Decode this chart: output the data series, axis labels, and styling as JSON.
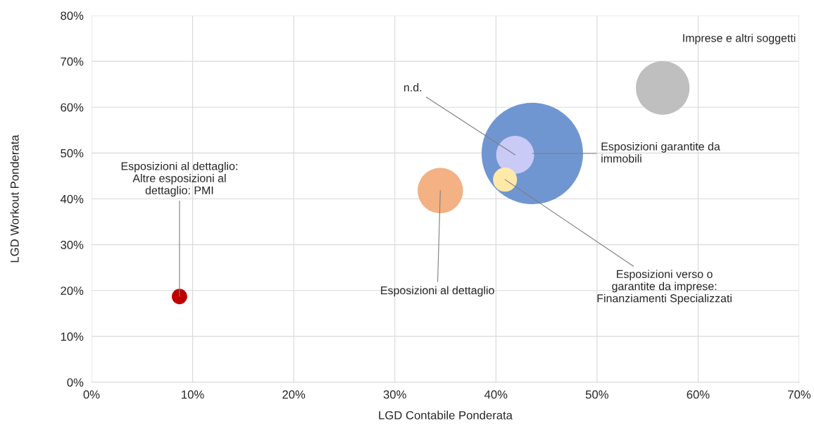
{
  "chart_data": {
    "type": "bubble",
    "xlabel": "LGD Contabile Ponderata",
    "ylabel": "LGD Workout Ponderata",
    "xlim": [
      0,
      70
    ],
    "ylim": [
      0,
      80
    ],
    "xticks": [
      {
        "value": 0,
        "label": "0%"
      },
      {
        "value": 10,
        "label": "10%"
      },
      {
        "value": 20,
        "label": "20%"
      },
      {
        "value": 30,
        "label": "30%"
      },
      {
        "value": 40,
        "label": "40%"
      },
      {
        "value": 50,
        "label": "50%"
      },
      {
        "value": 60,
        "label": "60%"
      },
      {
        "value": 70,
        "label": "70%"
      }
    ],
    "yticks": [
      {
        "value": 0,
        "label": "0%"
      },
      {
        "value": 10,
        "label": "10%"
      },
      {
        "value": 20,
        "label": "20%"
      },
      {
        "value": 30,
        "label": "30%"
      },
      {
        "value": 40,
        "label": "40%"
      },
      {
        "value": 50,
        "label": "50%"
      },
      {
        "value": 60,
        "label": "60%"
      },
      {
        "value": 70,
        "label": "70%"
      },
      {
        "value": 80,
        "label": "80%"
      }
    ],
    "grid": true,
    "legend": false,
    "series": [
      {
        "name": "Esposizioni garantite da\nimmobili",
        "color": "#7096d1",
        "x": [
          43.6
        ],
        "values": [
          49.9
        ],
        "sizes": [
          1
        ]
      },
      {
        "name": "n.d.",
        "color": "#cacaf6",
        "x": [
          41.9
        ],
        "values": [
          49.6
        ],
        "sizes": [
          0.14
        ]
      },
      {
        "name": "Esposizioni verso o\ngarantite da imprese:\nFinanziamenti Specializzati",
        "color": "#ffe9a8",
        "x": [
          40.9
        ],
        "values": [
          44.2
        ],
        "sizes": [
          0.056
        ]
      },
      {
        "name": "Esposizioni al dettaglio",
        "color": "#f4b183",
        "x": [
          34.5
        ],
        "values": [
          41.8
        ],
        "sizes": [
          0.2
        ]
      },
      {
        "name": "Esposizioni al dettaglio:\nAltre esposizioni al\ndettaglio: PMI",
        "color": "#c00000",
        "x": [
          8.7
        ],
        "values": [
          18.7
        ],
        "sizes": [
          0.023
        ]
      },
      {
        "name": "Imprese e altri soggetti",
        "color": "#bfbfbf",
        "x": [
          56.5
        ],
        "values": [
          64.2
        ],
        "sizes": [
          0.28
        ]
      }
    ]
  }
}
